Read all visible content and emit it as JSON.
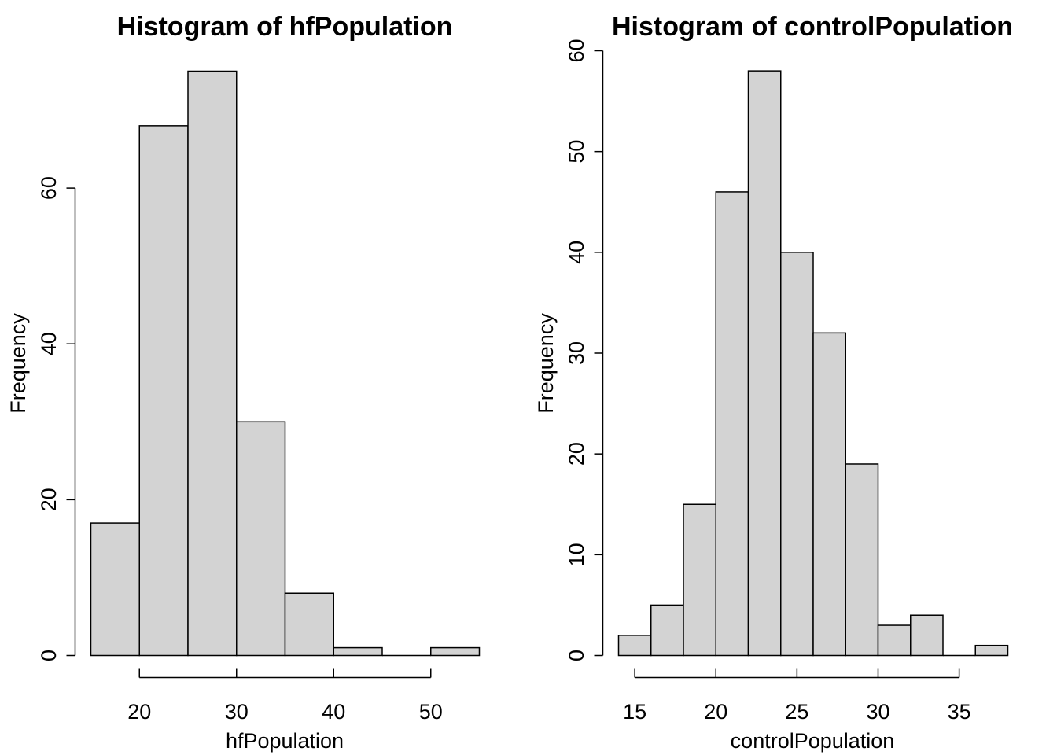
{
  "colors": {
    "bar_fill": "#d3d3d3",
    "stroke": "#000000",
    "background": "#ffffff"
  },
  "chart_data": [
    {
      "type": "bar",
      "title": "Histogram of hfPopulation",
      "xlabel": "hfPopulation",
      "ylabel": "Frequency",
      "bin_edges": [
        15,
        20,
        25,
        30,
        35,
        40,
        45,
        50,
        55
      ],
      "values": [
        17,
        68,
        75,
        30,
        8,
        1,
        0,
        1
      ],
      "xticks": [
        "20",
        "30",
        "40",
        "50"
      ],
      "yticks": [
        "0",
        "20",
        "40",
        "60"
      ],
      "xlim": [
        15,
        55
      ],
      "ylim": [
        0,
        75
      ],
      "grid": false
    },
    {
      "type": "bar",
      "title": "Histogram of controlPopulation",
      "xlabel": "controlPopulation",
      "ylabel": "Frequency",
      "bin_edges": [
        14,
        16,
        18,
        20,
        22,
        24,
        26,
        28,
        30,
        32,
        34,
        36,
        38
      ],
      "values": [
        2,
        5,
        15,
        46,
        58,
        40,
        32,
        19,
        3,
        4,
        0,
        1
      ],
      "xticks": [
        "15",
        "20",
        "25",
        "30",
        "35"
      ],
      "yticks": [
        "0",
        "10",
        "20",
        "30",
        "40",
        "50",
        "60"
      ],
      "xlim": [
        14,
        38
      ],
      "ylim": [
        0,
        60
      ],
      "grid": false
    }
  ]
}
